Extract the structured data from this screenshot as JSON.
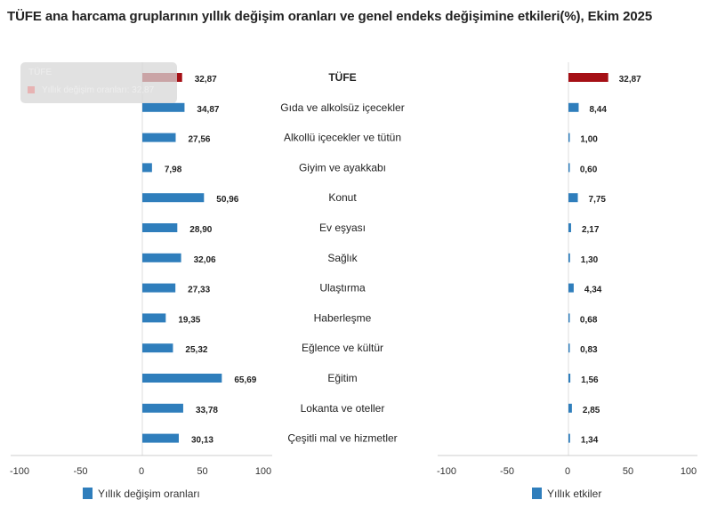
{
  "title": "TÜFE ana harcama gruplarının yıllık değişim oranları ve genel endeks değişimine etkileri(%), Ekim 2025",
  "tooltip": {
    "category": "TÜFE",
    "text": "Yıllık değişim oranları: 32,87"
  },
  "colors": {
    "highlight": "#a50f15",
    "bar": "#2f7ebc"
  },
  "chart_data": [
    {
      "type": "bar",
      "orientation": "horizontal",
      "legend": "Yıllık değişim oranları",
      "legend_placement": "bottom",
      "xlim": [
        -100,
        100
      ],
      "ticks": [
        "-100",
        "-50",
        "0",
        "50",
        "100"
      ],
      "categories": [
        "TÜFE",
        "Gıda ve alkolsüz içecekler",
        "Alkollü içecekler ve tütün",
        "Giyim ve ayakkabı",
        "Konut",
        "Ev eşyası",
        "Sağlık",
        "Ulaştırma",
        "Haberleşme",
        "Eğlence ve kültür",
        "Eğitim",
        "Lokanta ve oteller",
        "Çeşitli mal ve hizmetler"
      ],
      "values": [
        32.87,
        34.87,
        27.56,
        7.98,
        50.96,
        28.9,
        32.06,
        27.33,
        19.35,
        25.32,
        65.69,
        33.78,
        30.13
      ],
      "labels": [
        "32,87",
        "34,87",
        "27,56",
        "7,98",
        "50,96",
        "28,90",
        "32,06",
        "27,33",
        "19,35",
        "25,32",
        "65,69",
        "33,78",
        "30,13"
      ]
    },
    {
      "type": "bar",
      "orientation": "horizontal",
      "legend": "Yıllık etkiler",
      "legend_placement": "bottom",
      "xlim": [
        -100,
        100
      ],
      "ticks": [
        "-100",
        "-50",
        "0",
        "50",
        "100"
      ],
      "values": [
        32.87,
        8.44,
        1.0,
        0.6,
        7.75,
        2.17,
        1.3,
        4.34,
        0.68,
        0.83,
        1.56,
        2.85,
        1.34
      ],
      "labels": [
        "32,87",
        "8,44",
        "1,00",
        "0,60",
        "7,75",
        "2,17",
        "1,30",
        "4,34",
        "0,68",
        "0,83",
        "1,56",
        "2,85",
        "1,34"
      ]
    }
  ]
}
